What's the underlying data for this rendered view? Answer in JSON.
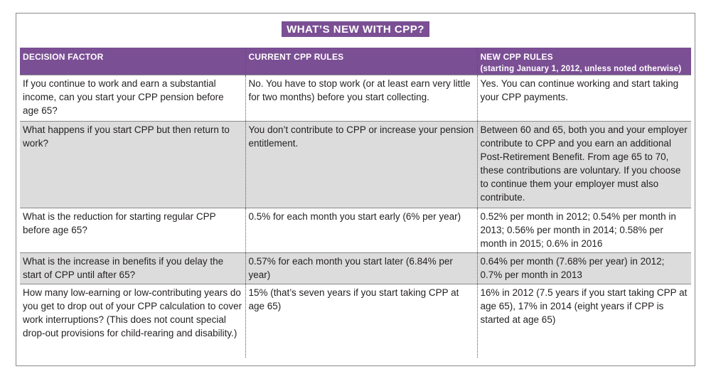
{
  "title": "WHAT’S NEW WITH CPP?",
  "columns": {
    "factor": "DECISION FACTOR",
    "current": "CURRENT CPP RULES",
    "new": "NEW CPP RULES",
    "new_note": "(starting January 1, 2012, unless noted otherwise)"
  },
  "rows": [
    {
      "factor": "If you continue to work and earn a substantial income, can you start your CPP pension before age 65?",
      "current": "No. You have to stop work (or at least earn very little for two months) before you start collecting.",
      "new": "Yes. You can continue working and start taking your CPP payments."
    },
    {
      "factor": "What happens if you start CPP but then return to work?",
      "current": "You don’t contribute to CPP or increase your pension entitlement.",
      "new": "Between 60 and 65, both you and your employer contribute to CPP and you earn an additional Post-Retirement Benefit. From age 65 to 70, these contributions are voluntary. If you choose to continue them your employer must also contribute."
    },
    {
      "factor": "What is the reduction for starting regular CPP before age 65?",
      "current": "0.5% for each month you start early (6% per year)",
      "new": "0.52% per month in 2012; 0.54% per month in 2013; 0.56% per month in 2014; 0.58% per month in 2015; 0.6% in 2016"
    },
    {
      "factor": "What is the increase in benefits if you delay the start of CPP until after 65?",
      "current": "0.57% for each month you start later (6.84% per year)",
      "new": "0.64% per month (7.68% per year) in 2012; 0.7% per month in 2013"
    },
    {
      "factor": "How many low-earning or low-contributing years do you get to drop out of your CPP calculation to cover work interruptions? (This does not count special drop-out provisions for child-rearing and disability.)",
      "current": "15% (that’s seven years if you start taking CPP at age 65)",
      "new": "16% in 2012 (7.5 years if you start taking CPP at age 65), 17% in 2014 (eight years if CPP is started at age 65)"
    }
  ]
}
